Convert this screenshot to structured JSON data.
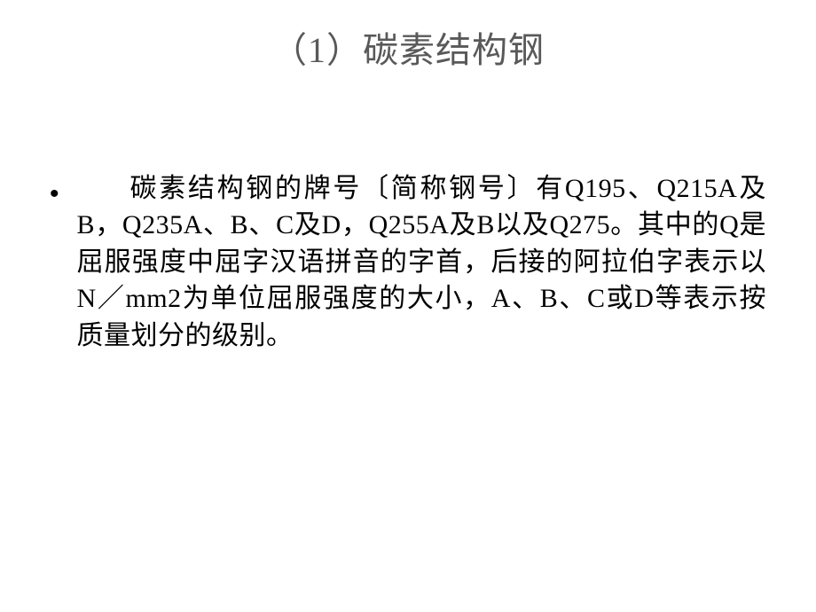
{
  "slide": {
    "title": "（1）碳素结构钢",
    "title_color": "#595959",
    "title_fontsize": 40,
    "background_color": "#ffffff",
    "body": {
      "bullet_marker": "•",
      "text": "碳素结构钢的牌号〔简称钢号〕有Q195、Q215A及B，Q235A、B、C及D，Q255A及B以及Q275。其中的Q是屈服强度中屈字汉语拼音的字首，后接的阿拉伯字表示以N／mm2为单位屈服强度的大小，A、B、C或D等表示按质量划分的级别。",
      "text_color": "#000000",
      "text_fontsize": 30
    }
  }
}
